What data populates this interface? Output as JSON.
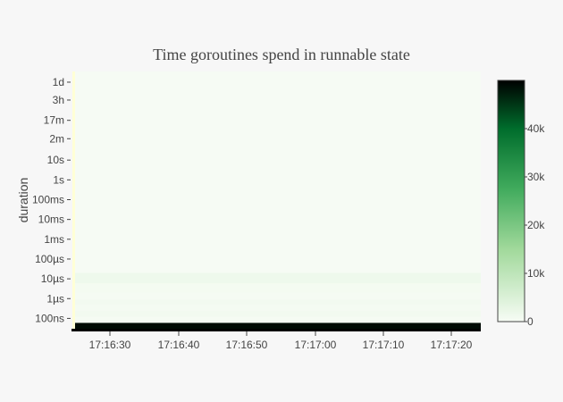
{
  "chart_data": {
    "type": "heatmap",
    "title": "Time goroutines spend in runnable state",
    "xlabel": "",
    "ylabel": "duration",
    "x_tick_labels": [
      "17:16:30",
      "17:16:40",
      "17:16:50",
      "17:17:00",
      "17:17:10",
      "17:17:20"
    ],
    "y_tick_labels": [
      "100ns",
      "1µs",
      "10µs",
      "100µs",
      "1ms",
      "10ms",
      "100ms",
      "1s",
      "10s",
      "2m",
      "17m",
      "3h",
      "1d"
    ],
    "y_range_seconds": [
      3e-08,
      300000
    ],
    "colorscale": [
      "#f7fcf5",
      "#74c476",
      "#00441b",
      "#000000"
    ],
    "colorbar": {
      "range": [
        0,
        50000
      ],
      "tick_labels": [
        "0",
        "10k",
        "20k",
        "30k",
        "40k"
      ],
      "tick_values": [
        0,
        10000,
        20000,
        30000,
        40000
      ]
    },
    "bands": [
      {
        "y_from_seconds": 3e-08,
        "y_to_seconds": 6e-08,
        "value": 49000
      },
      {
        "y_from_seconds": 6e-08,
        "y_to_seconds": 1.2e-07,
        "value": 400
      },
      {
        "y_from_seconds": 1.2e-07,
        "y_to_seconds": 2.5e-07,
        "value": 900
      },
      {
        "y_from_seconds": 2.5e-07,
        "y_to_seconds": 5e-07,
        "value": 500
      },
      {
        "y_from_seconds": 5e-07,
        "y_to_seconds": 9e-07,
        "value": 800
      },
      {
        "y_from_seconds": 9e-07,
        "y_to_seconds": 2e-06,
        "value": 300
      },
      {
        "y_from_seconds": 2e-06,
        "y_to_seconds": 6e-06,
        "value": 600
      },
      {
        "y_from_seconds": 6e-06,
        "y_to_seconds": 2e-05,
        "value": 1500
      },
      {
        "y_from_seconds": 2e-05,
        "y_to_seconds": 300000,
        "value": 250
      }
    ],
    "left_edge_color": "#ffffd6",
    "grid": false,
    "legend": "colorbar-right"
  }
}
